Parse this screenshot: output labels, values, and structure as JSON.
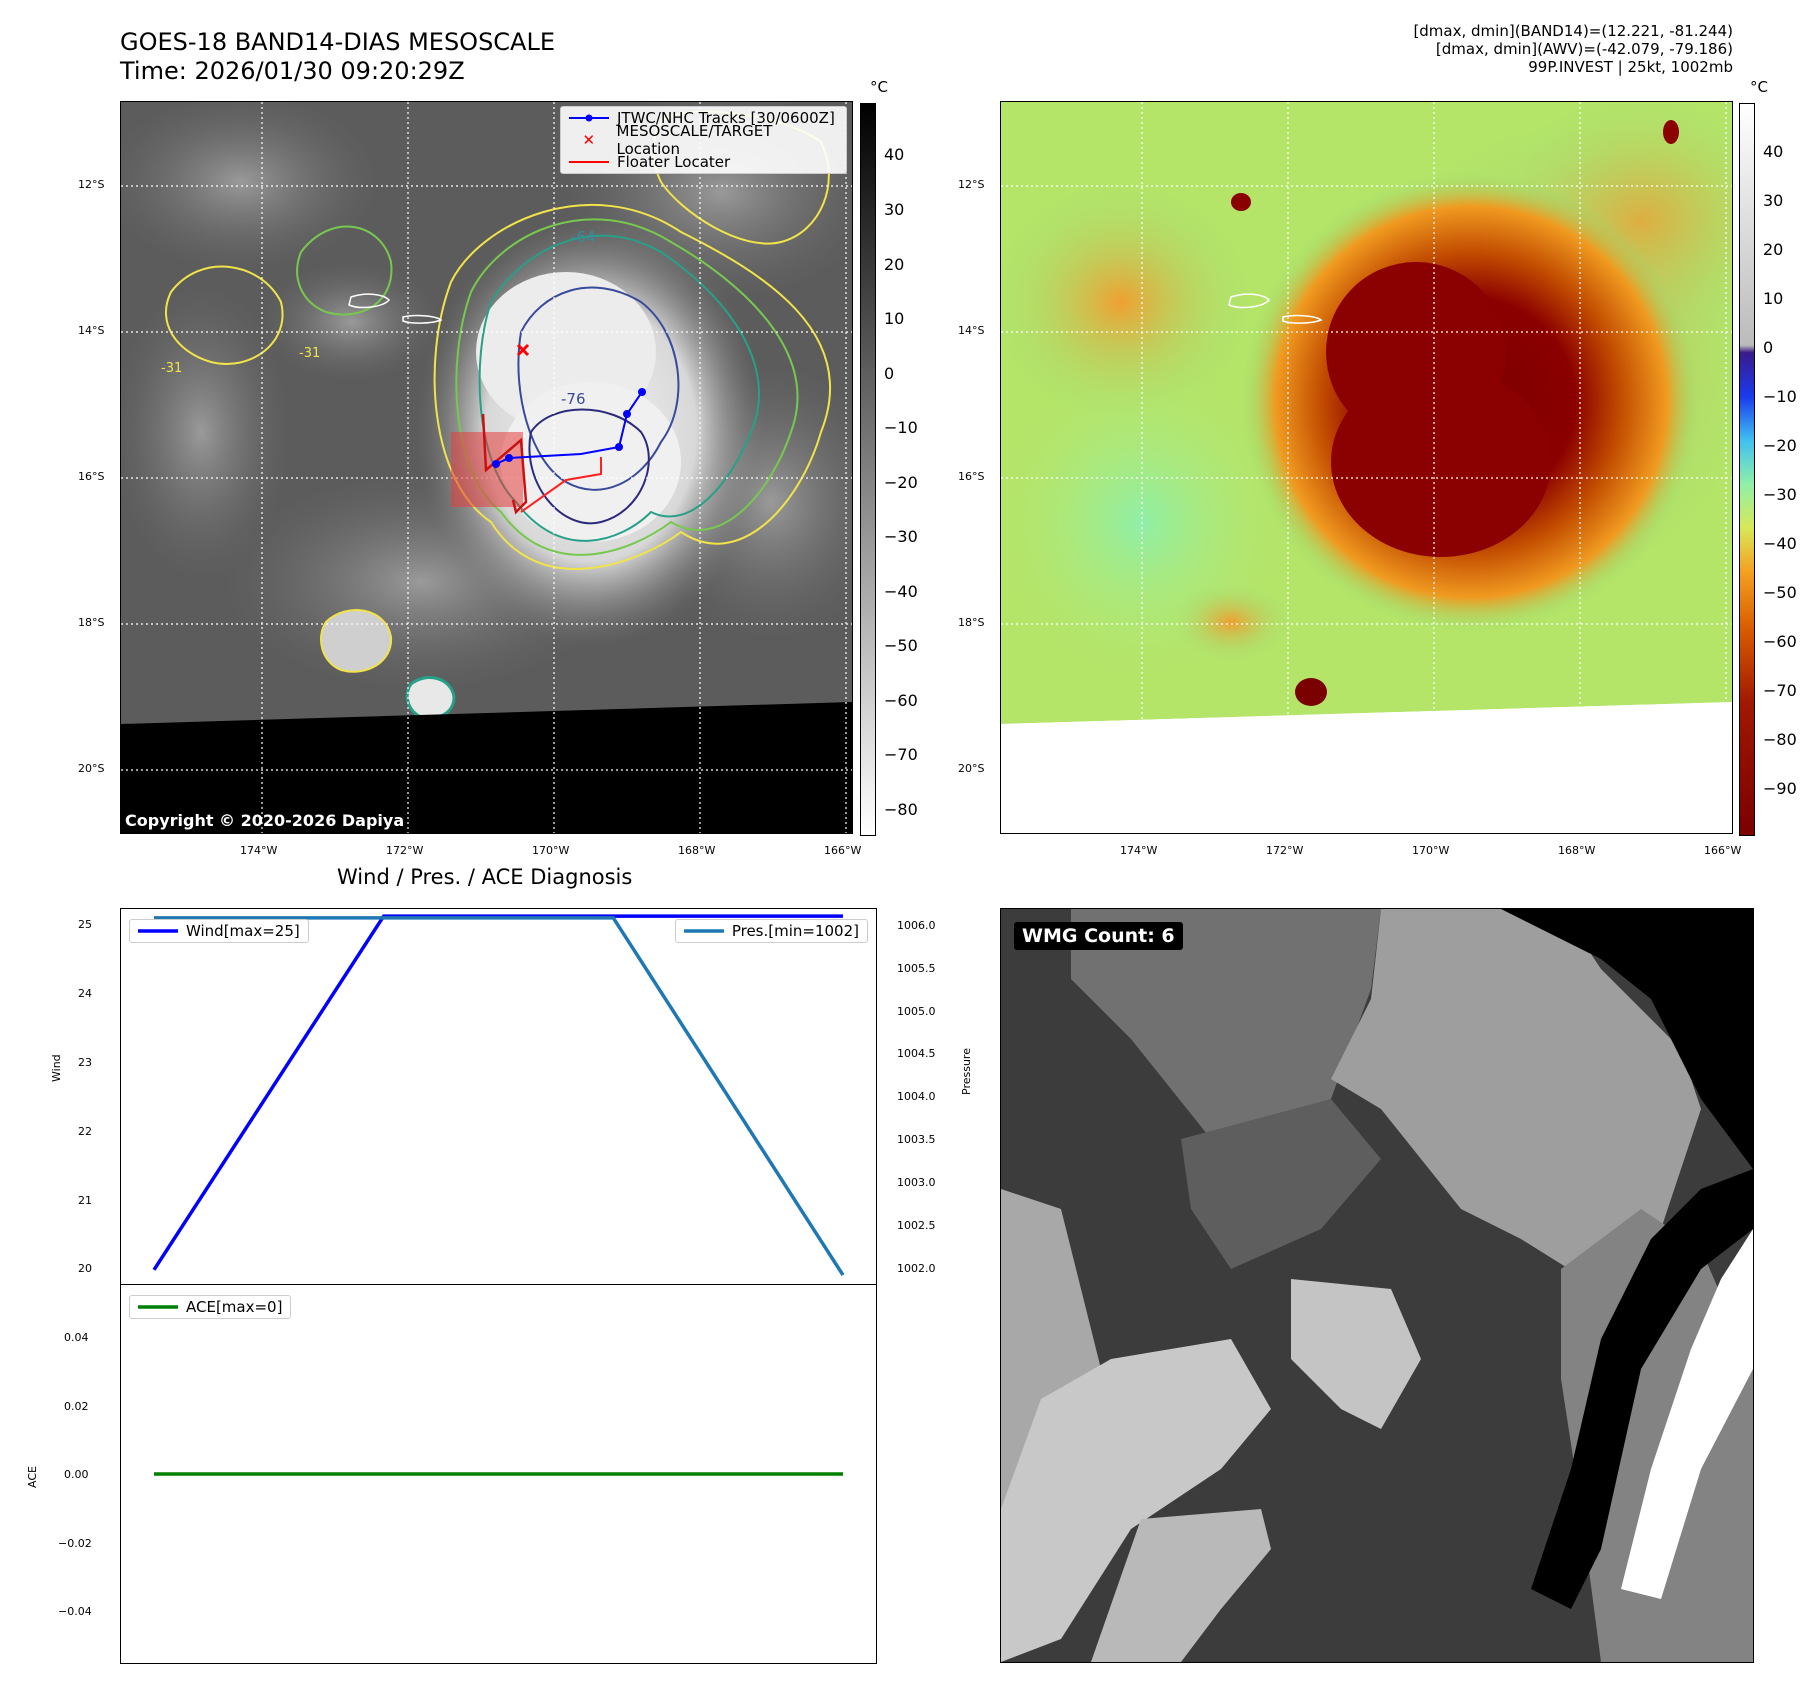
{
  "header": {
    "title_line1": "GOES-18 BAND14-DIAS MESOSCALE",
    "title_line2": "Time: 2026/01/30 09:20:29Z",
    "info_line1": "[dmax, dmin](BAND14)=(12.221, -81.244)",
    "info_line2": "[dmax, dmin](AWV)=(-42.079, -79.186)",
    "info_line3": "99P.INVEST | 25kt, 1002mb"
  },
  "map": {
    "lat_labels": [
      "12°S",
      "14°S",
      "16°S",
      "18°S",
      "20°S"
    ],
    "lon_labels": [
      "174°W",
      "172°W",
      "170°W",
      "168°W",
      "166°W"
    ],
    "contour_labels": [
      "-64",
      "-76",
      "-31",
      "-31"
    ],
    "copyright": "Copyright © 2020-2026 Dapiya",
    "legend": [
      "JTWC/NHC Tracks [30/0600Z]",
      "MESOSCALE/TARGET Location",
      "Floater Locater"
    ]
  },
  "colorbar_left": {
    "unit": "°C",
    "ticks": [
      "40",
      "30",
      "20",
      "10",
      "0",
      "−10",
      "−20",
      "−30",
      "−40",
      "−50",
      "−60",
      "−70",
      "−80"
    ]
  },
  "colorbar_right": {
    "unit": "°C",
    "ticks": [
      "40",
      "30",
      "20",
      "10",
      "0",
      "−10",
      "−20",
      "−30",
      "−40",
      "−50",
      "−60",
      "−70",
      "−80",
      "−90"
    ]
  },
  "colors": {
    "track": "#0000ff",
    "target": "#ff0000",
    "floater": "#ff0000",
    "wind": "#0000ff",
    "pres": "#1f77b4",
    "ace": "#008000"
  },
  "diagnosis": {
    "title": "Wind / Pres. / ACE Diagnosis",
    "wind_axis_label": "Wind",
    "pres_axis_label": "Pressure",
    "ace_axis_label": "ACE",
    "wind_legend": "Wind[max=25]",
    "pres_legend": "Pres.[min=1002]",
    "ace_legend": "ACE[max=0]",
    "wind_ticks": [
      "25",
      "24",
      "23",
      "22",
      "21",
      "20"
    ],
    "pres_ticks": [
      "1006.0",
      "1005.5",
      "1005.0",
      "1004.5",
      "1004.0",
      "1003.5",
      "1003.0",
      "1002.5",
      "1002.0"
    ],
    "ace_ticks": [
      "0.04",
      "0.02",
      "0.00",
      "−0.02",
      "−0.04"
    ]
  },
  "wmg": {
    "label": "WMG Count: 6"
  },
  "chart_data": [
    {
      "type": "line",
      "title": "Wind",
      "x": [
        0,
        1,
        2,
        3
      ],
      "values": [
        20,
        25,
        25,
        25
      ],
      "ylim": [
        19.8,
        25.1
      ],
      "ylabel": "Wind"
    },
    {
      "type": "line",
      "title": "Pressure",
      "x": [
        0,
        1,
        2,
        3
      ],
      "values": [
        1006,
        1006,
        1006,
        1002
      ],
      "ylim": [
        1001.9,
        1006.1
      ],
      "ylabel": "Pressure"
    },
    {
      "type": "line",
      "title": "ACE",
      "x": [
        0,
        1,
        2,
        3
      ],
      "values": [
        0,
        0,
        0,
        0
      ],
      "ylim": [
        -0.055,
        0.055
      ],
      "ylabel": "ACE"
    }
  ]
}
